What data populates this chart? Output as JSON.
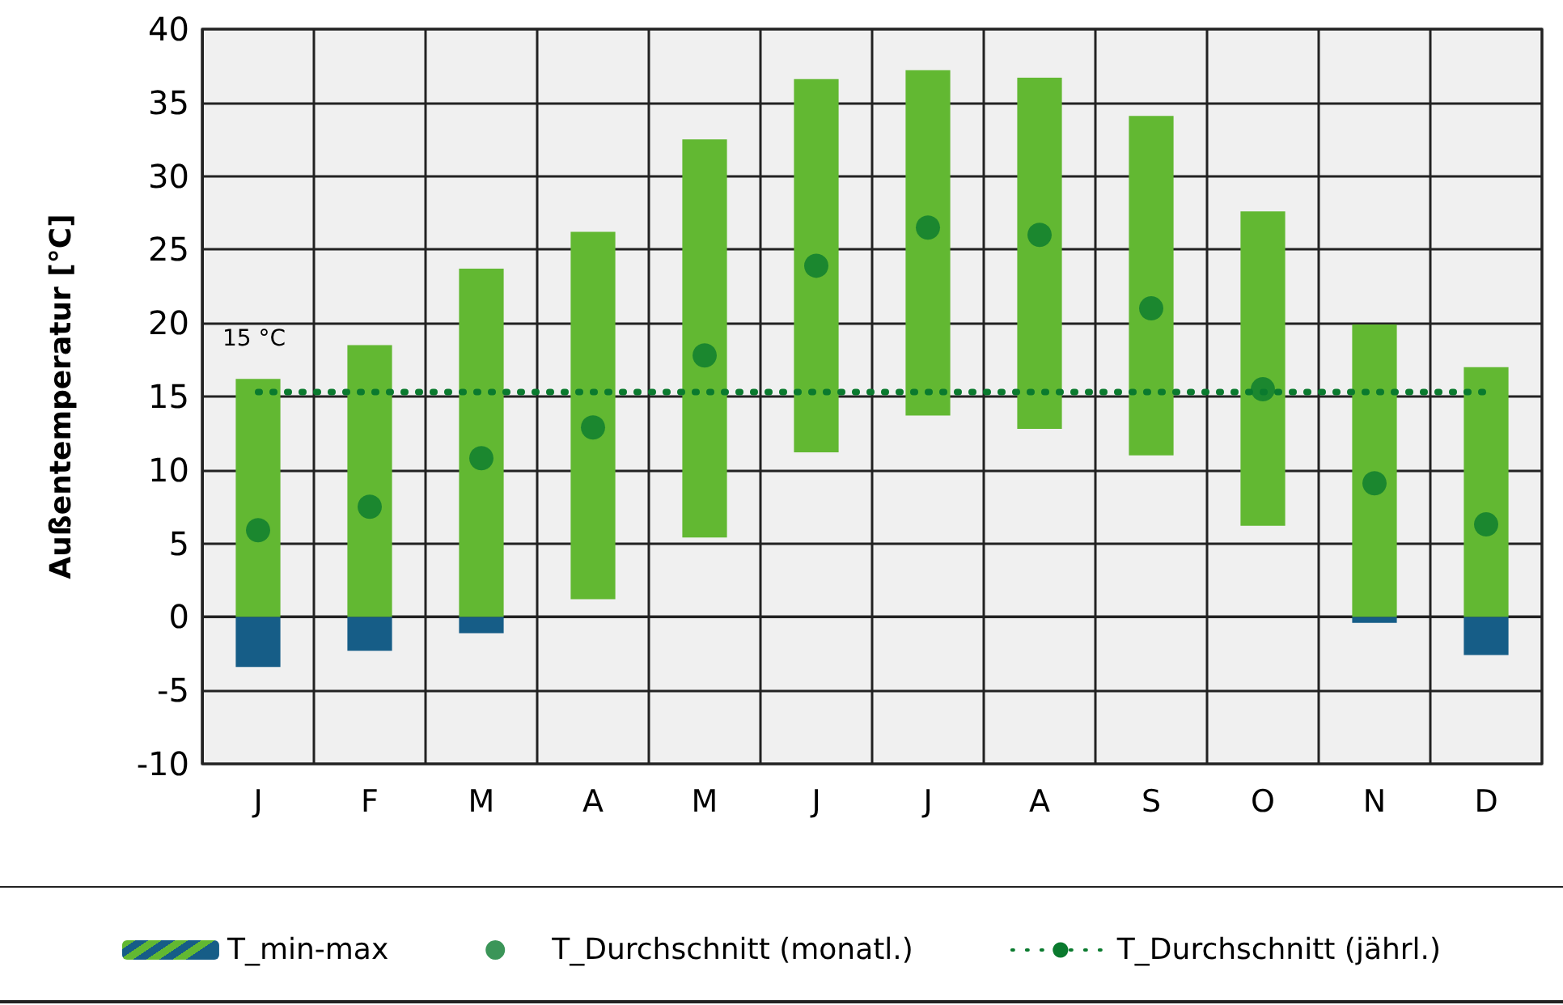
{
  "chart_data": {
    "type": "bar",
    "ylabel": "Außentemperatur [°C]",
    "categories": [
      "J",
      "F",
      "M",
      "A",
      "M",
      "J",
      "J",
      "A",
      "S",
      "O",
      "N",
      "D"
    ],
    "series": [
      {
        "name": "T_min-max",
        "color": "#62b832",
        "base": [
          0,
          0,
          0,
          1.2,
          5.4,
          11.2,
          13.7,
          12.8,
          11.0,
          6.2,
          0,
          0
        ],
        "values": [
          16.2,
          18.5,
          23.7,
          25.0,
          27.1,
          25.4,
          23.5,
          23.9,
          23.1,
          21.4,
          19.9,
          17.0
        ]
      },
      {
        "color": "#165d87",
        "base": [
          -3.4,
          -2.3,
          -1.1,
          null,
          null,
          null,
          null,
          null,
          null,
          null,
          -0.4,
          -2.6
        ],
        "values": [
          3.4,
          2.3,
          1.1,
          null,
          null,
          null,
          null,
          null,
          null,
          null,
          0.4,
          2.6
        ]
      },
      {
        "name": "T_Durchschnitt (monatl.)",
        "type": "scatter",
        "color": "#0a7a2e",
        "marker": "circle",
        "values": [
          5.9,
          7.5,
          10.8,
          12.9,
          17.8,
          23.9,
          26.5,
          26.0,
          21.0,
          15.5,
          9.1,
          6.3
        ]
      },
      {
        "name": "T_Durchschnitt (jährl.)",
        "type": "line",
        "color": "#0a7a2e",
        "marker": "none",
        "line_style": "dotted",
        "values": [
          15.3,
          15.3,
          15.3,
          15.3,
          15.3,
          15.3,
          15.3,
          15.3,
          15.3,
          15.3,
          15.3,
          15.3
        ]
      }
    ],
    "annotations": [
      {
        "text": "15 °C",
        "x": "J",
        "y": 15.3
      }
    ],
    "ylim": [
      -10,
      40
    ],
    "yticks": [
      -10,
      -5,
      0,
      5,
      10,
      15,
      20,
      25,
      30,
      35,
      40
    ],
    "grid": true,
    "legend": "bottom"
  }
}
